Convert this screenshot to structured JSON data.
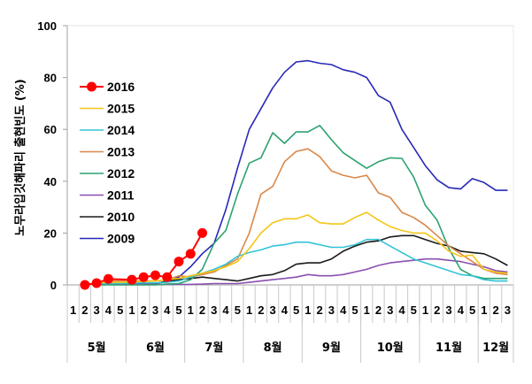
{
  "chart_data": {
    "type": "line",
    "title": "",
    "xlabel": "",
    "ylabel": "노무라입깃해파리 출현빈도 (%)",
    "ylim": [
      0,
      100
    ],
    "yticks": [
      0,
      20,
      40,
      60,
      80,
      100
    ],
    "grid": false,
    "legend_position": "top-left",
    "months": [
      {
        "label": "5월",
        "periods": 5
      },
      {
        "label": "6월",
        "periods": 5
      },
      {
        "label": "7월",
        "periods": 5
      },
      {
        "label": "8월",
        "periods": 5
      },
      {
        "label": "9월",
        "periods": 5
      },
      {
        "label": "10월",
        "periods": 5
      },
      {
        "label": "11월",
        "periods": 5
      },
      {
        "label": "12월",
        "periods": 3
      }
    ],
    "categories": [
      "1",
      "2",
      "3",
      "4",
      "5",
      "1",
      "2",
      "3",
      "4",
      "5",
      "1",
      "2",
      "3",
      "4",
      "5",
      "1",
      "2",
      "3",
      "4",
      "5",
      "1",
      "2",
      "3",
      "4",
      "5",
      "1",
      "2",
      "3",
      "4",
      "5",
      "1",
      "2",
      "3",
      "4",
      "5",
      "1",
      "2",
      "3"
    ],
    "series": [
      {
        "name": "2016",
        "color": "#ff0000",
        "marker": "circle",
        "values": [
          null,
          0,
          0.7,
          2.3,
          null,
          2,
          3,
          3.7,
          3,
          9,
          12,
          20,
          null,
          null,
          null,
          null,
          null,
          null,
          null,
          null,
          null,
          null,
          null,
          null,
          null,
          null,
          null,
          null,
          null,
          null,
          null,
          null,
          null,
          null,
          null,
          null,
          null,
          null
        ]
      },
      {
        "name": "2015",
        "color": "#f5c518",
        "marker": "none",
        "values": [
          null,
          null,
          0.8,
          1,
          1,
          1.2,
          1.3,
          1.5,
          2,
          2.5,
          3.5,
          4.5,
          5.5,
          7,
          9,
          14,
          20,
          24,
          25.5,
          25.5,
          27,
          24,
          23.5,
          23.5,
          26,
          28,
          25,
          22.5,
          21,
          20,
          20,
          17,
          13,
          11,
          11.5,
          6,
          5,
          4.5
        ]
      },
      {
        "name": "2014",
        "color": "#33c3d6",
        "marker": "none",
        "values": [
          null,
          null,
          0.5,
          0.5,
          0.6,
          0.7,
          0.8,
          0.8,
          1,
          1.5,
          3,
          4.5,
          6,
          8,
          11,
          12.5,
          13.5,
          15,
          15.5,
          16.5,
          16.5,
          15.5,
          14.5,
          14.5,
          15.5,
          17.5,
          17.5,
          15,
          12.5,
          10,
          8.5,
          7,
          5.5,
          4,
          3.5,
          2,
          1.5,
          1.5
        ]
      },
      {
        "name": "2013",
        "color": "#d9874a",
        "marker": "none",
        "values": [
          null,
          null,
          1,
          1.5,
          1.5,
          1.5,
          1.5,
          1.5,
          2,
          3.5,
          3,
          4,
          5,
          7.5,
          10,
          20,
          35,
          38,
          47.5,
          51.5,
          52.5,
          49.5,
          44,
          42.3,
          41.3,
          42.3,
          35.5,
          33.8,
          28,
          26,
          23,
          19,
          15,
          12,
          9,
          6,
          4.5,
          4
        ]
      },
      {
        "name": "2012",
        "color": "#2ca26e",
        "marker": "none",
        "values": [
          null,
          null,
          0,
          0,
          0,
          0,
          0,
          0,
          0.3,
          0.5,
          2,
          6,
          16,
          21,
          35,
          47,
          49,
          58.7,
          54.6,
          59,
          59,
          61.5,
          56,
          51,
          48,
          45,
          47.5,
          49,
          48.8,
          41.6,
          30.7,
          25,
          14,
          6,
          3.5,
          2.5,
          2.5,
          2.5
        ]
      },
      {
        "name": "2011",
        "color": "#8a4fb0",
        "marker": "none",
        "values": [
          null,
          null,
          0.2,
          0.2,
          0.2,
          0.2,
          0.2,
          0.2,
          0.2,
          0.2,
          0.2,
          0.3,
          0.5,
          0.5,
          0.5,
          1,
          1.5,
          2,
          2.5,
          3,
          4,
          3.5,
          3.5,
          4,
          5,
          6,
          7.5,
          8.5,
          9,
          9.5,
          10,
          10,
          9.5,
          9,
          8,
          7,
          5.5,
          5
        ]
      },
      {
        "name": "2010",
        "color": "#1a1a1a",
        "marker": "none",
        "values": [
          null,
          null,
          0.5,
          0.5,
          0.5,
          0.5,
          0.5,
          0.5,
          1.5,
          2,
          2.5,
          3,
          2.5,
          2,
          1.5,
          2.5,
          3.5,
          4,
          5.5,
          8,
          8.5,
          8.5,
          10,
          13,
          15,
          16.5,
          17,
          18.5,
          19,
          19,
          17.5,
          16,
          15,
          13,
          12.5,
          12,
          10,
          7.5
        ]
      },
      {
        "name": "2009",
        "color": "#2828b8",
        "marker": "none",
        "values": [
          null,
          null,
          0.5,
          0.5,
          0.5,
          0.5,
          0.5,
          0.5,
          1.5,
          3,
          7,
          12,
          16,
          29,
          45,
          60,
          68,
          76,
          82,
          86,
          86.5,
          85.5,
          85,
          83,
          82,
          80,
          73,
          70.5,
          60,
          53,
          46,
          40.5,
          37.5,
          37,
          41,
          39.5,
          36.5,
          36.5
        ]
      }
    ]
  }
}
